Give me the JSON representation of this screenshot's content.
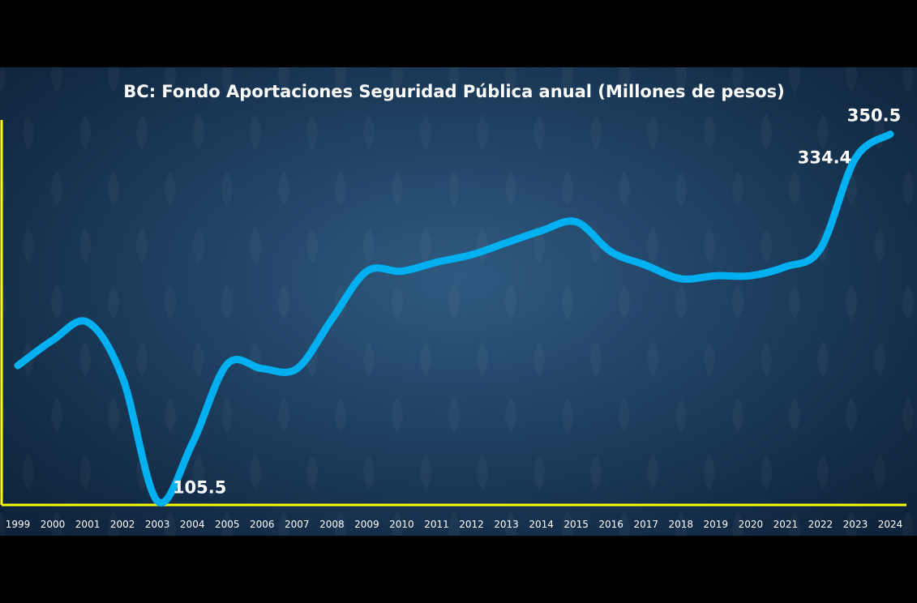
{
  "chart_data": {
    "type": "line",
    "title": "BC: Fondo Aportaciones Seguridad Pública anual (Millones de pesos)",
    "xlabel": "",
    "ylabel": "",
    "x": [
      "1999",
      "2000",
      "2001",
      "2002",
      "2003",
      "2004",
      "2005",
      "2006",
      "2007",
      "2008",
      "2009",
      "2010",
      "2011",
      "2012",
      "2013",
      "2014",
      "2015",
      "2016",
      "2017",
      "2018",
      "2019",
      "2020",
      "2021",
      "2022",
      "2023",
      "2024"
    ],
    "series": [
      {
        "values": [
          196,
          213,
          225,
          188,
          105.5,
          144,
          197,
          194,
          194,
          227,
          259,
          259,
          265,
          270,
          278,
          286,
          292,
          272,
          263,
          254,
          256,
          256,
          262,
          274,
          334.4,
          350.5
        ]
      }
    ],
    "ylim": [
      103,
      360
    ],
    "data_labels": [
      {
        "index": 4,
        "text": "105.5"
      },
      {
        "index": 24,
        "text": "334.4"
      },
      {
        "index": 25,
        "text": "350.5"
      }
    ],
    "grid": false,
    "colors": {
      "line": "#00b0f0",
      "axis": "#ffff00",
      "text": "#ffffff"
    }
  }
}
